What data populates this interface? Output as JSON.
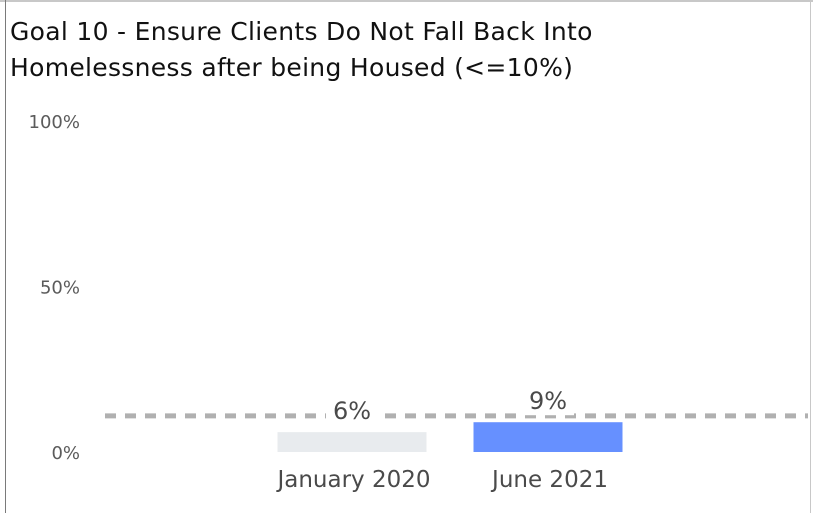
{
  "chart_data": {
    "type": "bar",
    "title": "Goal 10 - Ensure Clients Do Not Fall Back Into\nHomelessness after being Housed (<=10%)",
    "categories": [
      "January 2020",
      "June 2021"
    ],
    "values": [
      6,
      9
    ],
    "data_labels": [
      "6%",
      "9%"
    ],
    "bar_colors": [
      "#e8ebee",
      "#6690ff"
    ],
    "y_ticks": [
      {
        "value": 0,
        "label": "0%"
      },
      {
        "value": 50,
        "label": "50%"
      },
      {
        "value": 100,
        "label": "100%"
      }
    ],
    "ylim": [
      0,
      100
    ],
    "reference_line": {
      "value": 10,
      "style": "dashed",
      "color": "#b0b0b0"
    },
    "grid": false,
    "legend": "none"
  }
}
